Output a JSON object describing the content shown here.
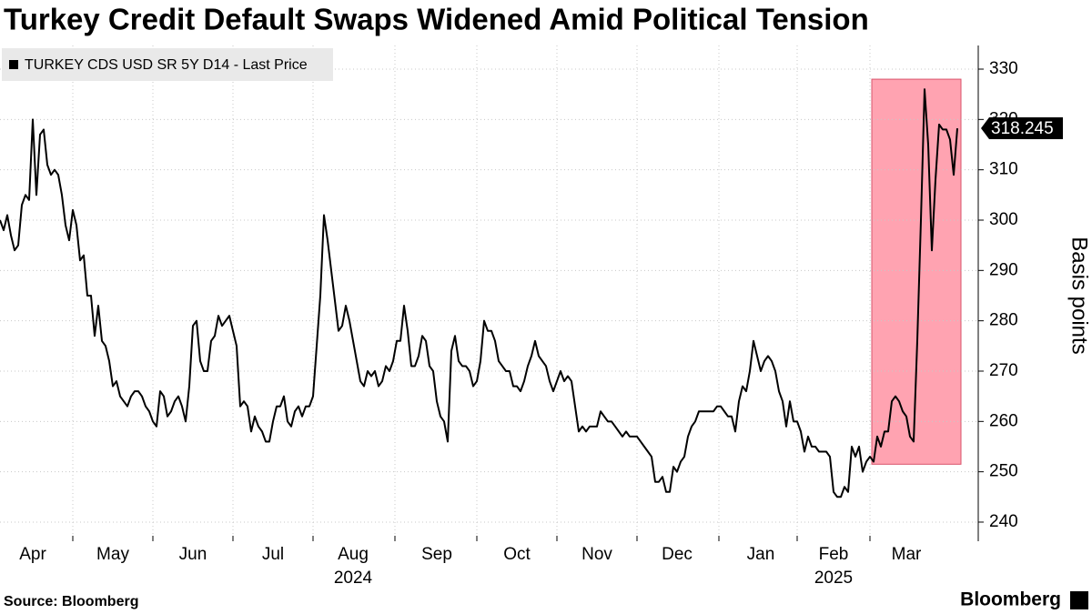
{
  "chart_data": {
    "type": "line",
    "title": "Turkey Credit Default Swaps Widened Amid Political Tension",
    "source": "Source: Bloomberg",
    "logo": "Bloomberg",
    "ylabel": "Basis points",
    "ylim": [
      236.2,
      334.7
    ],
    "yticks": [
      240,
      250,
      260,
      270,
      280,
      290,
      300,
      310,
      320,
      330
    ],
    "grid": true,
    "legend": "top-left",
    "highlight": {
      "from": 240,
      "to": 263,
      "ylim": [
        251.5,
        328
      ],
      "color": "#ffa3b1"
    },
    "categories": [
      null,
      null,
      null,
      null,
      null,
      null,
      null,
      null,
      null,
      "Apr",
      null,
      null,
      null,
      null,
      null,
      null,
      null,
      null,
      null,
      null,
      null,
      null,
      null,
      null,
      null,
      null,
      null,
      null,
      null,
      null,
      null,
      "May",
      null,
      null,
      null,
      null,
      null,
      null,
      null,
      null,
      null,
      null,
      null,
      null,
      null,
      null,
      null,
      null,
      null,
      null,
      null,
      null,
      null,
      "Jun",
      null,
      null,
      null,
      null,
      null,
      null,
      null,
      null,
      null,
      null,
      null,
      null,
      null,
      null,
      null,
      null,
      null,
      null,
      null,
      null,
      null,
      "Jul",
      null,
      null,
      null,
      null,
      null,
      null,
      null,
      null,
      null,
      null,
      null,
      null,
      null,
      null,
      null,
      null,
      null,
      null,
      null,
      null,
      null,
      "Aug\n2024",
      null,
      null,
      null,
      null,
      null,
      null,
      null,
      null,
      null,
      null,
      null,
      null,
      null,
      null,
      null,
      null,
      null,
      null,
      null,
      null,
      null,
      null,
      "Sep",
      null,
      null,
      null,
      null,
      null,
      null,
      null,
      null,
      null,
      null,
      null,
      null,
      null,
      null,
      null,
      null,
      null,
      null,
      null,
      null,
      null,
      "Oct",
      null,
      null,
      null,
      null,
      null,
      null,
      null,
      null,
      null,
      null,
      null,
      null,
      null,
      null,
      null,
      null,
      null,
      null,
      null,
      null,
      null,
      "Nov",
      null,
      null,
      null,
      null,
      null,
      null,
      null,
      null,
      null,
      null,
      null,
      null,
      null,
      null,
      null,
      null,
      null,
      null,
      null,
      null,
      null,
      "Dec",
      null,
      null,
      null,
      null,
      null,
      null,
      null,
      null,
      null,
      null,
      null,
      null,
      null,
      null,
      null,
      null,
      null,
      null,
      null,
      null,
      null,
      null,
      "Jan",
      null,
      null,
      null,
      null,
      null,
      null,
      null,
      null,
      null,
      null,
      null,
      null,
      null,
      null,
      null,
      null,
      null,
      null,
      null,
      "Feb\n2025",
      null,
      null,
      null,
      null,
      null,
      null,
      null,
      null,
      null,
      null,
      null,
      null,
      null,
      null,
      null,
      null,
      null,
      null,
      null,
      "Mar",
      null,
      null,
      null,
      null,
      null,
      null,
      null,
      null,
      null,
      null,
      null,
      null,
      null,
      null
    ],
    "series": [
      {
        "name": "TURKEY CDS USD SR 5Y D14 - Last Price",
        "color": "#000000",
        "values": [
          300,
          298,
          301,
          297,
          294,
          295,
          303,
          305,
          304,
          320,
          305,
          317,
          318,
          311,
          309,
          310,
          309,
          305,
          299,
          296,
          302,
          299,
          292,
          293,
          285,
          285,
          277,
          283,
          276,
          275,
          272,
          267,
          268,
          265,
          264,
          263,
          265,
          266,
          266,
          265,
          263,
          262,
          260,
          259,
          266,
          265,
          261,
          262,
          264,
          265,
          263,
          260,
          267,
          279,
          280,
          272,
          270,
          270,
          276,
          277,
          281,
          279,
          280,
          281,
          278,
          275,
          263,
          264,
          263,
          258,
          261,
          259,
          258,
          256,
          256,
          260,
          263,
          263,
          265,
          260,
          259,
          262,
          263,
          261,
          263,
          263,
          265,
          275,
          285,
          301,
          296,
          290,
          284,
          278,
          279,
          283,
          280,
          276,
          272,
          268,
          267,
          270,
          269,
          270,
          267,
          268,
          271,
          270,
          272,
          276,
          276,
          283,
          278,
          271,
          271,
          273,
          277,
          276,
          271,
          270,
          264,
          261,
          260,
          256,
          274,
          277,
          272,
          271,
          271,
          270,
          267,
          268,
          272,
          280,
          278,
          278,
          276,
          272,
          271,
          270,
          270,
          267,
          267,
          266,
          268,
          271,
          273,
          276,
          273,
          272,
          271,
          268,
          266,
          268,
          270,
          268,
          269,
          268,
          263,
          258,
          259,
          258,
          259,
          259,
          259,
          262,
          261,
          260,
          260,
          259,
          258,
          257,
          258,
          257,
          257,
          257,
          256,
          255,
          254,
          253,
          248,
          248,
          249,
          246,
          246,
          251,
          250,
          252,
          253,
          257,
          259,
          260,
          262,
          262,
          262,
          262,
          262,
          263,
          263,
          262,
          261,
          261,
          258,
          264,
          267,
          266,
          270,
          276,
          273,
          270,
          272,
          273,
          272,
          270,
          266,
          264,
          259,
          264,
          260,
          260,
          258,
          254,
          257,
          255,
          255,
          254,
          254,
          254,
          253,
          246,
          245,
          245,
          247,
          246,
          255,
          253,
          255,
          250,
          252,
          253,
          252,
          257,
          255,
          258,
          258,
          264,
          265,
          264,
          262,
          261,
          257,
          256,
          276,
          300,
          326,
          315,
          294,
          308,
          319,
          318,
          318,
          316,
          309,
          318.245
        ]
      }
    ]
  }
}
